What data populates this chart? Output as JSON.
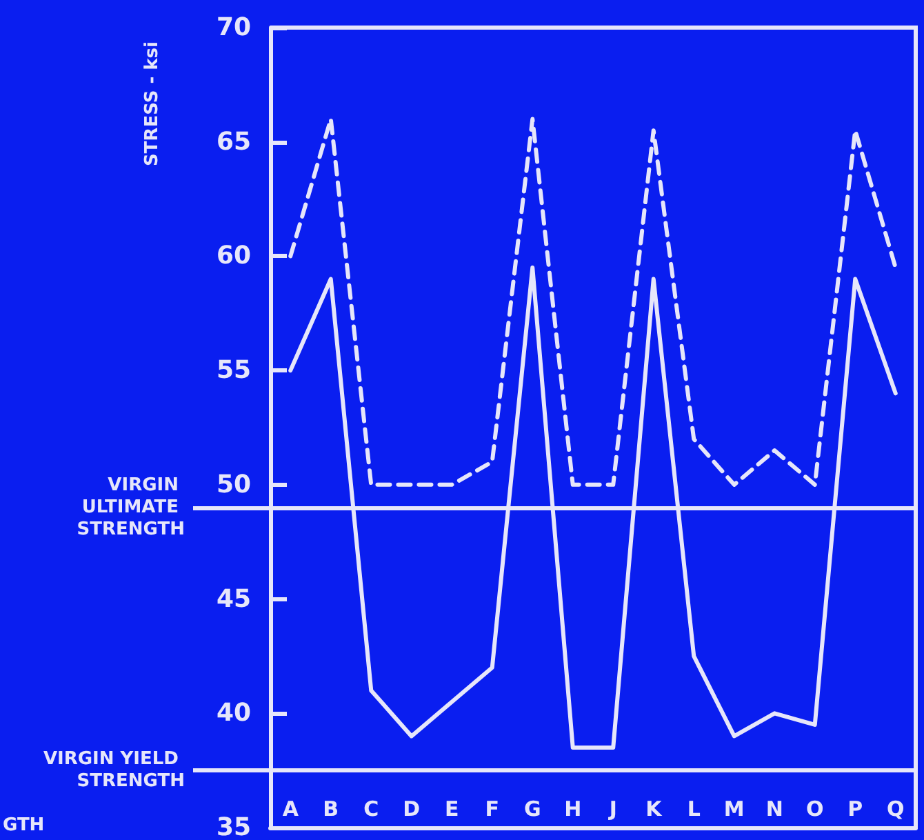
{
  "chart_data": {
    "type": "line",
    "ylabel": "STRESS - ksi",
    "annotations": [
      "GTH"
    ],
    "categories": [
      "A",
      "B",
      "C",
      "D",
      "E",
      "F",
      "G",
      "H",
      "J",
      "K",
      "L",
      "M",
      "N",
      "O",
      "P",
      "Q"
    ],
    "ylim": [
      35,
      70
    ],
    "yticks": [
      35,
      40,
      45,
      50,
      55,
      60,
      65,
      70
    ],
    "series": [
      {
        "color": "#e6e6fa",
        "line_style": "dashed",
        "values": [
          60,
          66,
          50,
          50,
          50,
          51,
          66,
          50,
          50,
          65.5,
          52,
          50,
          51.5,
          50,
          65.5,
          59.5
        ]
      },
      {
        "color": "#e6e6fa",
        "line_style": "solid",
        "values": [
          55,
          59,
          41,
          39,
          40.5,
          42,
          59.5,
          38.5,
          38.5,
          59,
          42.5,
          39,
          40,
          39.5,
          59,
          54
        ]
      }
    ],
    "ref_lines": [
      {
        "axis": "y",
        "value": 49,
        "label": "VIRGIN ULTIMATE STRENGTH",
        "color": "#e6e6fa"
      },
      {
        "axis": "y",
        "value": 37.5,
        "label": "VIRGIN YIELD STRENGTH",
        "color": "#e6e6fa"
      }
    ],
    "marker": "none",
    "grid": false
  }
}
